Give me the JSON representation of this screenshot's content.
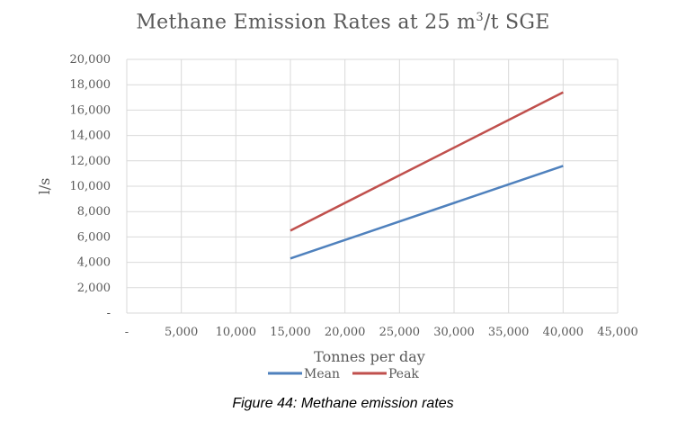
{
  "chart_data": {
    "type": "line",
    "title_main": "Methane Emission Rates at 25 m",
    "title_sup": "3",
    "title_tail": "/t SGE",
    "xlabel": "Tonnes per day",
    "ylabel": "l/s",
    "xlim": [
      0,
      45000
    ],
    "ylim": [
      0,
      20000
    ],
    "x_ticks": [
      0,
      5000,
      10000,
      15000,
      20000,
      25000,
      30000,
      35000,
      40000,
      45000
    ],
    "y_ticks": [
      0,
      2000,
      4000,
      6000,
      8000,
      10000,
      12000,
      14000,
      16000,
      18000,
      20000
    ],
    "x_tick_labels": [
      "-",
      "5,000",
      "10,000",
      "15,000",
      "20,000",
      "25,000",
      "30,000",
      "35,000",
      "40,000",
      "45,000"
    ],
    "y_tick_labels": [
      "-",
      "2,000",
      "4,000",
      "6,000",
      "8,000",
      "10,000",
      "12,000",
      "14,000",
      "16,000",
      "18,000",
      "20,000"
    ],
    "grid": true,
    "legend_position": "bottom",
    "series": [
      {
        "name": "Mean",
        "color": "#4f81bd",
        "x": [
          15000,
          40000
        ],
        "y": [
          4300,
          11600
        ]
      },
      {
        "name": "Peak",
        "color": "#c0504d",
        "x": [
          15000,
          40000
        ],
        "y": [
          6500,
          17400
        ]
      }
    ]
  },
  "caption": "Figure 44: Methane emission rates"
}
